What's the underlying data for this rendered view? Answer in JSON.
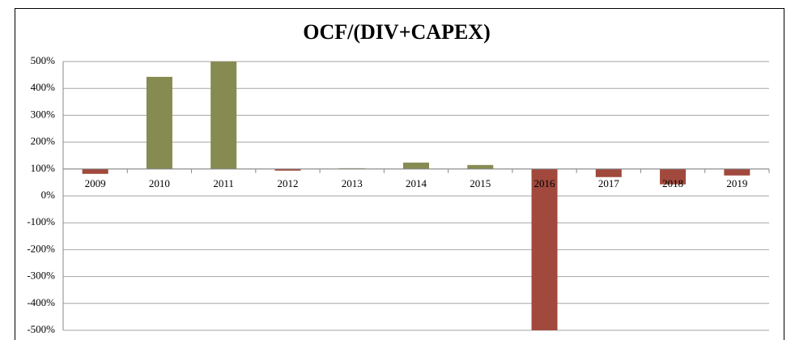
{
  "chart_data": {
    "type": "bar",
    "title": "OCF/(DIV+CAPEX)",
    "categories": [
      "2009",
      "2010",
      "2011",
      "2012",
      "2013",
      "2014",
      "2015",
      "2016",
      "2017",
      "2018",
      "2019"
    ],
    "values": [
      82,
      443,
      500,
      94,
      103,
      124,
      115,
      -500,
      70,
      43,
      76
    ],
    "colors": [
      "#a0493c",
      "#868b52",
      "#868b52",
      "#a0493c",
      "#868b52",
      "#868b52",
      "#868b52",
      "#a0493c",
      "#a0493c",
      "#a0493c",
      "#a0493c"
    ],
    "x_axis_crosses": 100,
    "ylim": [
      -500,
      500
    ],
    "yticks": [
      {
        "value": -500,
        "label": "-500%"
      },
      {
        "value": -400,
        "label": "-400%"
      },
      {
        "value": -300,
        "label": "-300%"
      },
      {
        "value": -200,
        "label": "-200%"
      },
      {
        "value": -100,
        "label": "-100%"
      },
      {
        "value": 0,
        "label": "0%"
      },
      {
        "value": 100,
        "label": "100%"
      },
      {
        "value": 200,
        "label": "200%"
      },
      {
        "value": 300,
        "label": "300%"
      },
      {
        "value": 400,
        "label": "400%"
      },
      {
        "value": 500,
        "label": "500%"
      }
    ],
    "grid": true
  }
}
